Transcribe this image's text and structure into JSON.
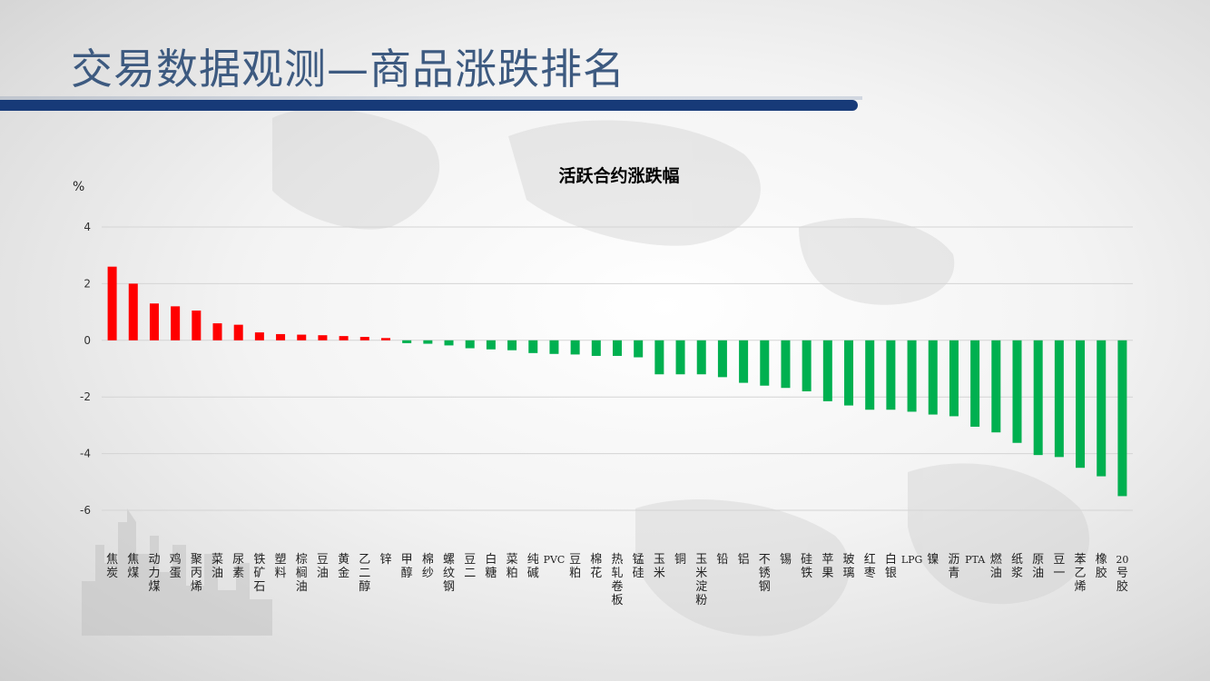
{
  "page": {
    "title": "交易数据观测—商品涨跌排名"
  },
  "colors": {
    "up": "#ff0000",
    "down": "#00b050",
    "title": "#3d5a80",
    "bar": "#173a78"
  },
  "chart_data": {
    "type": "bar",
    "title": "活跃合约涨跌幅",
    "ylabel": "%",
    "xlabel": "",
    "ylim": [
      -6,
      4
    ],
    "yticks": [
      4,
      2,
      0,
      -2,
      -4,
      -6
    ],
    "grid": true,
    "categories": [
      "焦炭",
      "焦煤",
      "动力煤",
      "鸡蛋",
      "聚丙烯",
      "菜油",
      "尿素",
      "铁矿石",
      "塑料",
      "棕榈油",
      "豆油",
      "黄金",
      "乙二醇",
      "锌",
      "甲醇",
      "棉纱",
      "螺纹钢",
      "豆二",
      "白糖",
      "菜粕",
      "纯碱",
      "PVC",
      "豆粕",
      "棉花",
      "热轧卷板",
      "锰硅",
      "玉米",
      "铜",
      "玉米淀粉",
      "铅",
      "铝",
      "不锈钢",
      "锡",
      "硅铁",
      "苹果",
      "玻璃",
      "红枣",
      "白银",
      "LPG",
      "镍",
      "沥青",
      "PTA",
      "燃油",
      "纸浆",
      "原油",
      "豆一",
      "苯乙烯",
      "橡胶",
      "20号胶"
    ],
    "values": [
      2.6,
      2.0,
      1.3,
      1.2,
      1.05,
      0.6,
      0.55,
      0.28,
      0.22,
      0.2,
      0.18,
      0.15,
      0.12,
      0.08,
      -0.1,
      -0.12,
      -0.18,
      -0.28,
      -0.32,
      -0.35,
      -0.45,
      -0.48,
      -0.5,
      -0.55,
      -0.55,
      -0.6,
      -1.2,
      -1.2,
      -1.2,
      -1.3,
      -1.5,
      -1.6,
      -1.68,
      -1.8,
      -2.15,
      -2.3,
      -2.45,
      -2.45,
      -2.52,
      -2.62,
      -2.68,
      -3.05,
      -3.25,
      -3.62,
      -4.05,
      -4.12,
      -4.5,
      -4.8,
      -5.5
    ]
  }
}
